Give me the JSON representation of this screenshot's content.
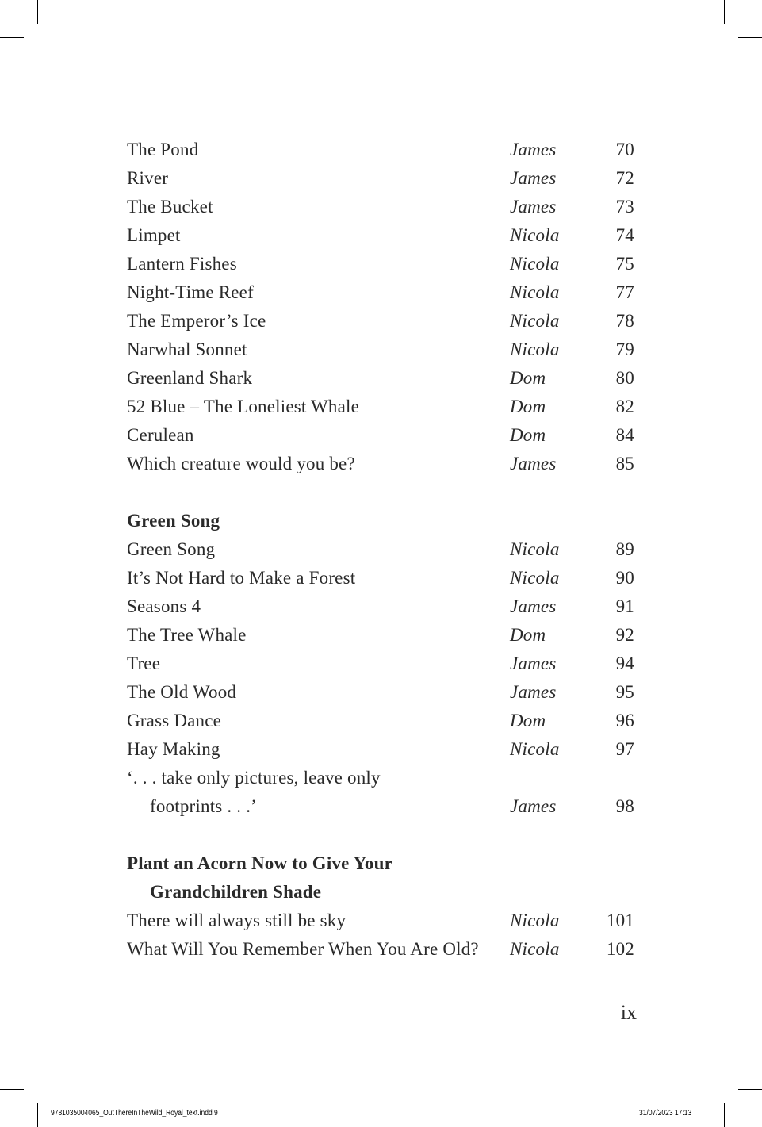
{
  "toc": [
    {
      "title": "The Pond",
      "author": "James",
      "page": "70"
    },
    {
      "title": "River",
      "author": "James",
      "page": "72"
    },
    {
      "title": "The Bucket",
      "author": "James",
      "page": "73"
    },
    {
      "title": "Limpet",
      "author": "Nicola",
      "page": "74"
    },
    {
      "title": "Lantern Fishes",
      "author": "Nicola",
      "page": "75"
    },
    {
      "title": "Night-Time Reef",
      "author": "Nicola",
      "page": "77"
    },
    {
      "title": "The Emperor’s Ice",
      "author": "Nicola",
      "page": "78"
    },
    {
      "title": "Narwhal Sonnet",
      "author": "Nicola",
      "page": "79"
    },
    {
      "title": "Greenland Shark",
      "author": "Dom",
      "page": "80"
    },
    {
      "title": "52 Blue – The Loneliest Whale",
      "author": "Dom",
      "page": "82"
    },
    {
      "title": "Cerulean",
      "author": "Dom",
      "page": "84"
    },
    {
      "title": "Which creature would you be?",
      "author": "James",
      "page": "85"
    },
    {
      "blank": true
    },
    {
      "heading": "Green Song"
    },
    {
      "title": "Green Song",
      "author": "Nicola",
      "page": "89"
    },
    {
      "title": "It’s Not Hard to Make a Forest",
      "author": "Nicola",
      "page": "90"
    },
    {
      "title": "Seasons 4",
      "author": "James",
      "page": "91"
    },
    {
      "title": "The Tree Whale",
      "author": "Dom",
      "page": "92"
    },
    {
      "title": "Tree",
      "author": "James",
      "page": "94"
    },
    {
      "title": "The Old Wood",
      "author": "James",
      "page": "95"
    },
    {
      "title": "Grass Dance",
      "author": "Dom",
      "page": "96"
    },
    {
      "title": "Hay Making",
      "author": "Nicola",
      "page": "97"
    },
    {
      "title": "‘. . . take only pictures, leave only"
    },
    {
      "title": "footprints . . .’",
      "author": "James",
      "page": "98",
      "indent": true
    },
    {
      "blank": true
    },
    {
      "heading": "Plant an Acorn Now to Give Your"
    },
    {
      "heading": "Grandchildren Shade",
      "indent": true
    },
    {
      "title": "There will always still be sky",
      "author": "Nicola",
      "page": "101"
    },
    {
      "title": "What Will You Remember When You Are Old?",
      "author": "Nicola",
      "page": "102"
    }
  ],
  "folio": "ix",
  "slug": {
    "file": "9781035004065_OutThereInTheWild_Royal_text.indd   9",
    "datetime": "31/07/2023   17:13"
  }
}
